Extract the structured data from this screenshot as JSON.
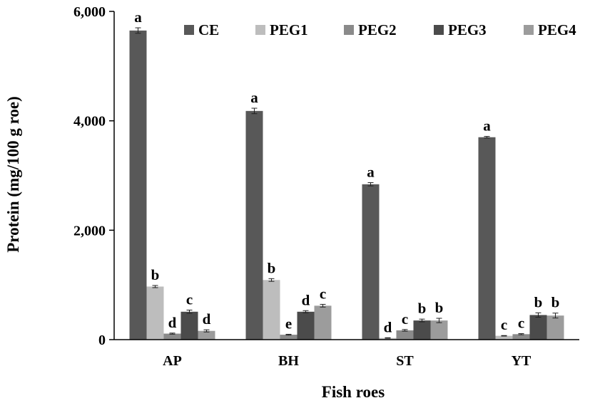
{
  "chart_data": {
    "type": "bar",
    "title": "",
    "xlabel": "Fish roes",
    "ylabel": "Protein (mg/100 g roe)",
    "ylim": [
      0,
      6000
    ],
    "yticks": [
      0,
      2000,
      4000,
      6000
    ],
    "ytick_labels": [
      "0",
      "2,000",
      "4,000",
      "6,000"
    ],
    "categories": [
      "AP",
      "BH",
      "ST",
      "YT"
    ],
    "legend_position": "top-right",
    "grid": false,
    "series": [
      {
        "name": "CE",
        "color": "#585858",
        "values": [
          5650,
          4180,
          2840,
          3700
        ],
        "errors": [
          50,
          50,
          30,
          15
        ],
        "labels": [
          "a",
          "a",
          "a",
          "a"
        ]
      },
      {
        "name": "PEG1",
        "color": "#bdbdbd",
        "values": [
          970,
          1090,
          30,
          70
        ],
        "errors": [
          20,
          25,
          5,
          5
        ],
        "labels": [
          "b",
          "b",
          "d",
          "c"
        ]
      },
      {
        "name": "PEG2",
        "color": "#8a8a8a",
        "values": [
          110,
          90,
          170,
          100
        ],
        "errors": [
          10,
          8,
          15,
          10
        ],
        "labels": [
          "d",
          "e",
          "c",
          "c"
        ]
      },
      {
        "name": "PEG3",
        "color": "#4b4b4b",
        "values": [
          510,
          510,
          350,
          450
        ],
        "errors": [
          30,
          20,
          25,
          40
        ],
        "labels": [
          "c",
          "d",
          "b",
          "b"
        ]
      },
      {
        "name": "PEG4",
        "color": "#9c9c9c",
        "values": [
          160,
          620,
          350,
          440
        ],
        "errors": [
          20,
          25,
          40,
          45
        ],
        "labels": [
          "d",
          "c",
          "b",
          "b"
        ]
      }
    ]
  }
}
